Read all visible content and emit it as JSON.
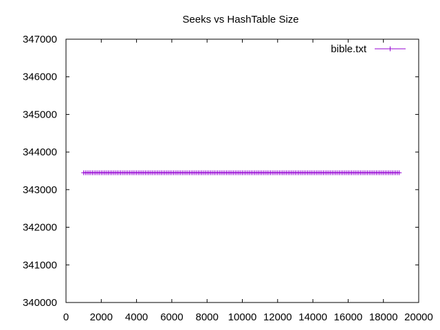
{
  "chart_data": {
    "type": "line",
    "title": "Seeks vs HashTable Size",
    "xlabel": "",
    "ylabel": "",
    "xlim": [
      0,
      20000
    ],
    "ylim": [
      340000,
      347000
    ],
    "x_ticks": [
      0,
      2000,
      4000,
      6000,
      8000,
      10000,
      12000,
      14000,
      16000,
      18000,
      20000
    ],
    "y_ticks": [
      340000,
      341000,
      342000,
      343000,
      344000,
      345000,
      346000,
      347000
    ],
    "grid": false,
    "legend_position": "top-right",
    "series": [
      {
        "name": "bible.txt",
        "color": "#9400d3",
        "marker": "plus",
        "x_start": 1000,
        "x_end": 18900,
        "x_step": 100,
        "y": 343450
      }
    ]
  }
}
